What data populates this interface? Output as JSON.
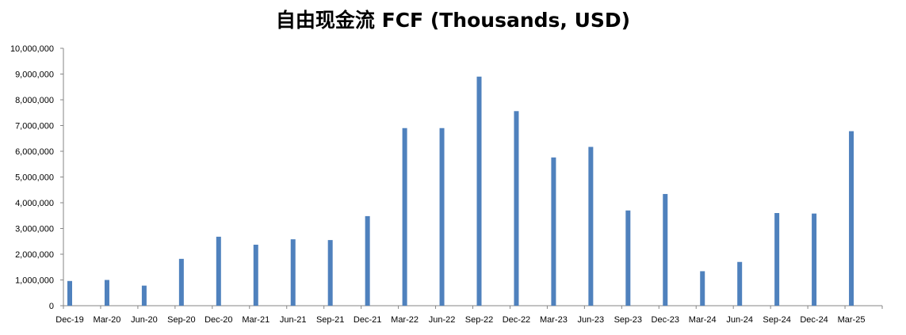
{
  "chart_data": {
    "type": "bar",
    "title": "自由现金流 FCF (Thousands, USD)",
    "xlabel": "",
    "ylabel": "",
    "ylim": [
      0,
      10000000
    ],
    "yticks": [
      "0",
      "1,000,000",
      "2,000,000",
      "3,000,000",
      "4,000,000",
      "5,000,000",
      "6,000,000",
      "7,000,000",
      "8,000,000",
      "9,000,000",
      "10,000,000"
    ],
    "grid": false,
    "legend": "none",
    "bar_color": "#4F81BD",
    "categories": [
      "Dec-19",
      "Mar-20",
      "Jun-20",
      "Sep-20",
      "Dec-20",
      "Mar-21",
      "Jun-21",
      "Sep-21",
      "Dec-21",
      "Mar-22",
      "Jun-22",
      "Sep-22",
      "Dec-22",
      "Mar-23",
      "Jun-23",
      "Sep-23",
      "Dec-23",
      "Mar-24",
      "Jun-24",
      "Sep-24",
      "Dec-24",
      "Mar-25"
    ],
    "values": [
      960000,
      1000000,
      780000,
      1820000,
      2680000,
      2370000,
      2580000,
      2550000,
      3480000,
      6900000,
      6900000,
      8900000,
      7560000,
      5760000,
      6170000,
      3700000,
      4340000,
      1340000,
      1700000,
      3600000,
      3580000,
      6780000
    ]
  }
}
